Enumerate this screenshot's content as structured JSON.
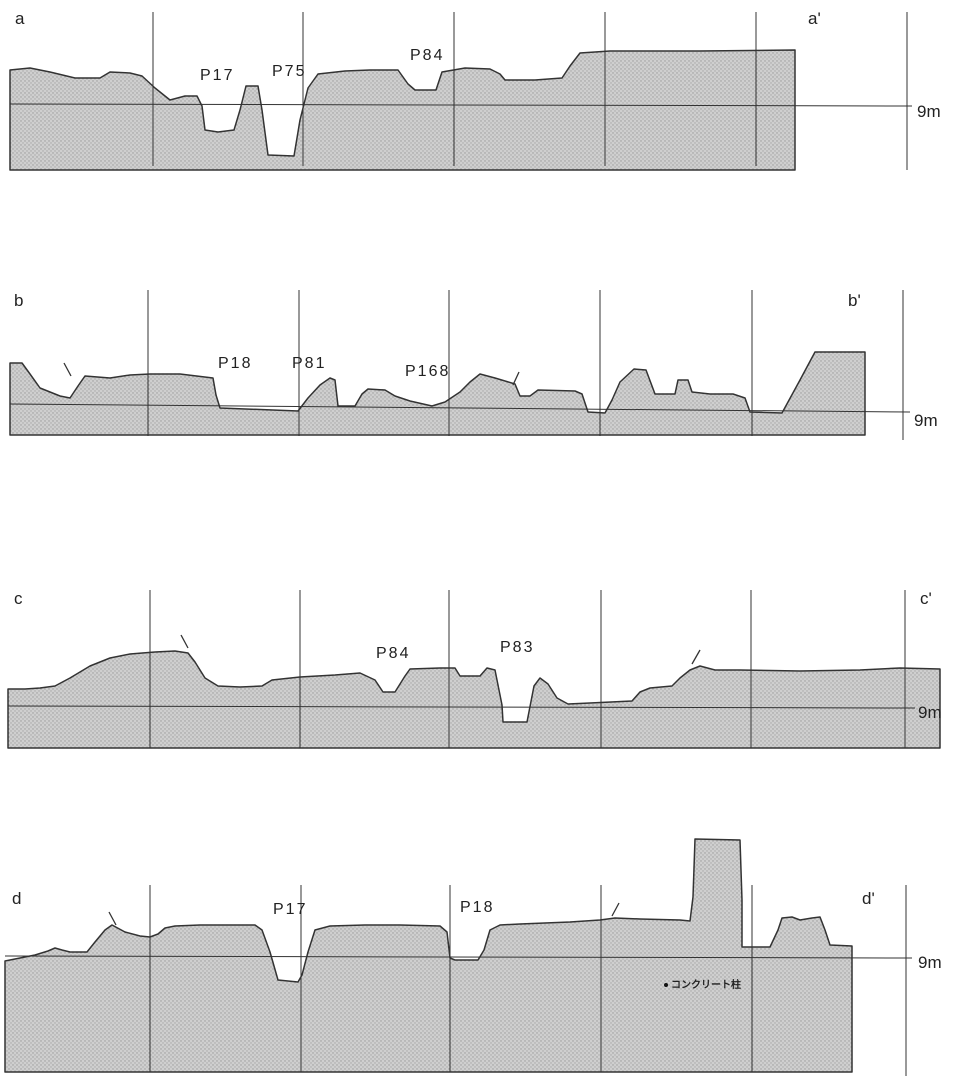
{
  "sections": [
    {
      "id": "a",
      "start_label": "a",
      "end_label": "a'",
      "datum_label": "9m",
      "features": [
        "P17",
        "P75",
        "P84"
      ]
    },
    {
      "id": "b",
      "start_label": "b",
      "end_label": "b'",
      "datum_label": "9m",
      "features": [
        "P18",
        "P81",
        "P168"
      ]
    },
    {
      "id": "c",
      "start_label": "c",
      "end_label": "c'",
      "datum_label": "9m",
      "features": [
        "P84",
        "P83"
      ]
    },
    {
      "id": "d",
      "start_label": "d",
      "end_label": "d'",
      "datum_label": "9m",
      "features": [
        "P17",
        "P18"
      ],
      "note": "コンクリート柱"
    }
  ],
  "style": {
    "fill_color": "#c8c8c8",
    "line_color": "#333333"
  }
}
